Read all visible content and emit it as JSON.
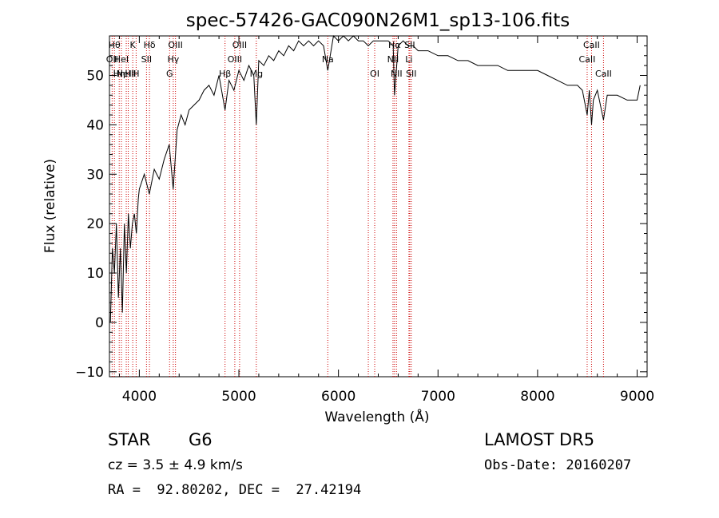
{
  "chart_data": {
    "type": "line",
    "title": "spec-57426-GAC090N26M1_sp13-106.fits",
    "xlabel": "Wavelength (Å)",
    "ylabel": "Flux (relative)",
    "xlim": [
      3700,
      9100
    ],
    "ylim": [
      -11,
      58
    ],
    "x_ticks": [
      4000,
      5000,
      6000,
      7000,
      8000,
      9000
    ],
    "x_tick_labels": [
      "4000",
      "5000",
      "6000",
      "7000",
      "8000",
      "9000"
    ],
    "y_ticks": [
      -10,
      0,
      10,
      20,
      30,
      40,
      50
    ],
    "y_tick_labels": [
      "−10",
      "0",
      "10",
      "20",
      "30",
      "40",
      "50"
    ],
    "grid": false,
    "line_color": "#000000",
    "marker_color": "#cc0000",
    "series": [
      {
        "x": [
          3710,
          3730,
          3750,
          3770,
          3790,
          3810,
          3830,
          3850,
          3870,
          3890,
          3910,
          3930,
          3950,
          3970,
          3990,
          4000,
          4050,
          4100,
          4150,
          4200,
          4250,
          4300,
          4340,
          4380,
          4420,
          4460,
          4500,
          4550,
          4600,
          4650,
          4700,
          4750,
          4800,
          4861,
          4900,
          4950,
          5000,
          5050,
          5100,
          5150,
          5175,
          5200,
          5250,
          5300,
          5350,
          5400,
          5450,
          5500,
          5550,
          5600,
          5650,
          5700,
          5750,
          5800,
          5850,
          5893,
          5950,
          6000,
          6050,
          6100,
          6150,
          6200,
          6250,
          6300,
          6350,
          6400,
          6450,
          6500,
          6550,
          6563,
          6600,
          6650,
          6700,
          6750,
          6800,
          6900,
          7000,
          7100,
          7200,
          7300,
          7400,
          7500,
          7600,
          7700,
          7800,
          7900,
          8000,
          8100,
          8200,
          8300,
          8400,
          8450,
          8498,
          8520,
          8542,
          8560,
          8600,
          8662,
          8700,
          8800,
          8900,
          8950,
          9000,
          9030
        ],
        "y": [
          0,
          15,
          10,
          20,
          5,
          15,
          2,
          20,
          10,
          22,
          15,
          20,
          22,
          18,
          25,
          27,
          30,
          26,
          31,
          29,
          33,
          36,
          27,
          39,
          42,
          40,
          43,
          44,
          45,
          47,
          48,
          46,
          50,
          43,
          49,
          47,
          51,
          49,
          52,
          50,
          40,
          53,
          52,
          54,
          53,
          55,
          54,
          56,
          55,
          57,
          56,
          57,
          56,
          57,
          56,
          51,
          58,
          57,
          58,
          57,
          58,
          57,
          57,
          56,
          57,
          57,
          57,
          57,
          56,
          46,
          56,
          57,
          56,
          56,
          55,
          55,
          54,
          54,
          53,
          53,
          52,
          52,
          52,
          51,
          51,
          51,
          51,
          50,
          49,
          48,
          48,
          47,
          42,
          47,
          40,
          45,
          47,
          41,
          46,
          46,
          45,
          45,
          45,
          48
        ]
      }
    ],
    "line_markers": [
      {
        "x": 3727,
        "label": "OII",
        "row": 1
      },
      {
        "x": 3750,
        "label": "Hθ",
        "row": 0
      },
      {
        "x": 3798,
        "label": "Hη",
        "row": 2
      },
      {
        "x": 3820,
        "label": "HeI",
        "row": 1
      },
      {
        "x": 3869,
        "label": "NeIII",
        "row": 2
      },
      {
        "x": 3889,
        "label": "H",
        "row": 2
      },
      {
        "x": 3934,
        "label": "K",
        "row": 0
      },
      {
        "x": 3968,
        "label": "H",
        "row": 2
      },
      {
        "x": 4072,
        "label": "SII",
        "row": 1
      },
      {
        "x": 4102,
        "label": "Hδ",
        "row": 0
      },
      {
        "x": 4304,
        "label": "G",
        "row": 2
      },
      {
        "x": 4341,
        "label": "Hγ",
        "row": 1
      },
      {
        "x": 4363,
        "label": "OIII",
        "row": 0
      },
      {
        "x": 4861,
        "label": "Hβ",
        "row": 2
      },
      {
        "x": 4959,
        "label": "OIII",
        "row": 1
      },
      {
        "x": 5007,
        "label": "OIII",
        "row": 0
      },
      {
        "x": 5175,
        "label": "Mg",
        "row": 2
      },
      {
        "x": 5893,
        "label": "Na",
        "row": 1
      },
      {
        "x": 6300,
        "label": "",
        "row": 0
      },
      {
        "x": 6364,
        "label": "OI",
        "row": 2
      },
      {
        "x": 6548,
        "label": "NII",
        "row": 1
      },
      {
        "x": 6563,
        "label": "Hα",
        "row": 0
      },
      {
        "x": 6583,
        "label": "NII",
        "row": 2
      },
      {
        "x": 6708,
        "label": "Li",
        "row": 1
      },
      {
        "x": 6716,
        "label": "SII",
        "row": 0
      },
      {
        "x": 6731,
        "label": "SII",
        "row": 2
      },
      {
        "x": 8498,
        "label": "CaII",
        "row": 1
      },
      {
        "x": 8542,
        "label": "CaII",
        "row": 0
      },
      {
        "x": 8662,
        "label": "CaII",
        "row": 2
      }
    ]
  },
  "info": {
    "object_class": "STAR",
    "subclass": "G6",
    "survey": "LAMOST DR5",
    "cz": "cz = 3.5 ± 4.9 km/s",
    "obs_date": "Obs-Date: 20160207",
    "coords": "RA =  92.80202, DEC =  27.42194"
  }
}
